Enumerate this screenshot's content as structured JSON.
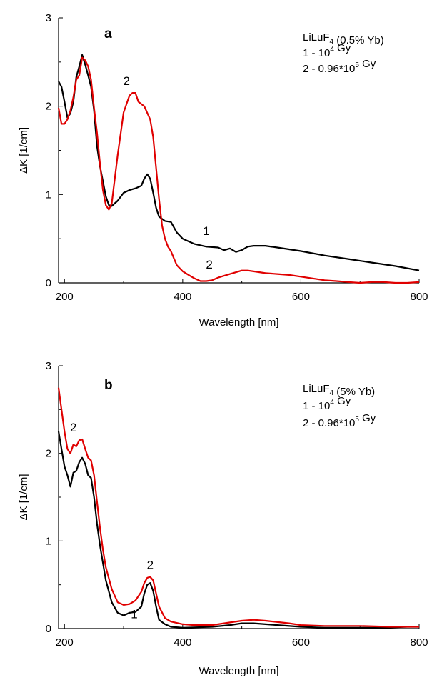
{
  "chart_data": [
    {
      "type": "line",
      "panel_label": "a",
      "xlabel": "Wavelength [nm]",
      "ylabel": "ΔK [1/cm]",
      "xlim": [
        190,
        800
      ],
      "ylim": [
        0,
        3
      ],
      "xticks": [
        200,
        400,
        600,
        800
      ],
      "yticks": [
        0,
        1,
        2,
        3
      ],
      "legend": {
        "placement": "top-right",
        "lines": [
          {
            "parts": [
              {
                "t": "LiLuF"
              },
              {
                "t": "4",
                "sub": true
              },
              {
                "t": " (0.5% Yb)"
              }
            ]
          },
          {
            "parts": [
              {
                "t": "1 - 10"
              },
              {
                "t": "4",
                "sup": true
              },
              {
                "t": " Gy"
              }
            ]
          },
          {
            "parts": [
              {
                "t": "2 - 0.96*10"
              },
              {
                "t": "5",
                "sup": true
              },
              {
                "t": " Gy"
              }
            ]
          }
        ]
      },
      "series": [
        {
          "label": "1",
          "color": "#000000",
          "points": [
            [
              190,
              2.28
            ],
            [
              195,
              2.22
            ],
            [
              200,
              2.05
            ],
            [
              205,
              1.87
            ],
            [
              210,
              1.92
            ],
            [
              215,
              2.05
            ],
            [
              220,
              2.33
            ],
            [
              225,
              2.45
            ],
            [
              230,
              2.58
            ],
            [
              235,
              2.47
            ],
            [
              240,
              2.35
            ],
            [
              245,
              2.22
            ],
            [
              250,
              1.95
            ],
            [
              255,
              1.55
            ],
            [
              260,
              1.32
            ],
            [
              265,
              1.15
            ],
            [
              270,
              0.98
            ],
            [
              275,
              0.88
            ],
            [
              280,
              0.87
            ],
            [
              290,
              0.93
            ],
            [
              300,
              1.02
            ],
            [
              310,
              1.05
            ],
            [
              320,
              1.07
            ],
            [
              330,
              1.1
            ],
            [
              335,
              1.18
            ],
            [
              340,
              1.23
            ],
            [
              345,
              1.18
            ],
            [
              350,
              1.02
            ],
            [
              355,
              0.85
            ],
            [
              360,
              0.75
            ],
            [
              370,
              0.7
            ],
            [
              380,
              0.69
            ],
            [
              390,
              0.57
            ],
            [
              400,
              0.5
            ],
            [
              420,
              0.44
            ],
            [
              440,
              0.41
            ],
            [
              460,
              0.4
            ],
            [
              470,
              0.37
            ],
            [
              480,
              0.39
            ],
            [
              490,
              0.35
            ],
            [
              500,
              0.37
            ],
            [
              510,
              0.41
            ],
            [
              520,
              0.42
            ],
            [
              540,
              0.42
            ],
            [
              560,
              0.4
            ],
            [
              600,
              0.36
            ],
            [
              640,
              0.31
            ],
            [
              680,
              0.27
            ],
            [
              720,
              0.23
            ],
            [
              760,
              0.19
            ],
            [
              800,
              0.14
            ]
          ]
        },
        {
          "label": "2",
          "color": "#e00000",
          "points": [
            [
              190,
              1.98
            ],
            [
              195,
              1.8
            ],
            [
              200,
              1.8
            ],
            [
              205,
              1.85
            ],
            [
              210,
              1.95
            ],
            [
              215,
              2.1
            ],
            [
              220,
              2.3
            ],
            [
              225,
              2.35
            ],
            [
              230,
              2.55
            ],
            [
              235,
              2.52
            ],
            [
              240,
              2.45
            ],
            [
              245,
              2.3
            ],
            [
              250,
              1.98
            ],
            [
              255,
              1.7
            ],
            [
              260,
              1.35
            ],
            [
              265,
              1.05
            ],
            [
              270,
              0.88
            ],
            [
              275,
              0.83
            ],
            [
              280,
              0.9
            ],
            [
              290,
              1.45
            ],
            [
              300,
              1.93
            ],
            [
              310,
              2.12
            ],
            [
              315,
              2.15
            ],
            [
              320,
              2.15
            ],
            [
              325,
              2.05
            ],
            [
              335,
              2.0
            ],
            [
              345,
              1.85
            ],
            [
              350,
              1.65
            ],
            [
              355,
              1.3
            ],
            [
              360,
              0.95
            ],
            [
              365,
              0.65
            ],
            [
              370,
              0.5
            ],
            [
              375,
              0.41
            ],
            [
              380,
              0.36
            ],
            [
              385,
              0.28
            ],
            [
              390,
              0.2
            ],
            [
              400,
              0.13
            ],
            [
              410,
              0.09
            ],
            [
              420,
              0.05
            ],
            [
              430,
              0.02
            ],
            [
              440,
              0.02
            ],
            [
              450,
              0.03
            ],
            [
              460,
              0.06
            ],
            [
              480,
              0.1
            ],
            [
              500,
              0.14
            ],
            [
              510,
              0.14
            ],
            [
              520,
              0.13
            ],
            [
              540,
              0.11
            ],
            [
              560,
              0.1
            ],
            [
              580,
              0.09
            ],
            [
              600,
              0.07
            ],
            [
              620,
              0.05
            ],
            [
              640,
              0.03
            ],
            [
              660,
              0.02
            ],
            [
              680,
              0.01
            ],
            [
              700,
              0.0
            ],
            [
              720,
              0.01
            ],
            [
              740,
              0.01
            ],
            [
              760,
              0.0
            ],
            [
              780,
              0.0
            ],
            [
              800,
              0.01
            ]
          ]
        }
      ],
      "curve_labels": [
        {
          "text": "1",
          "x": 440,
          "y": 0.54
        },
        {
          "text": "2",
          "x": 445,
          "y": 0.16
        },
        {
          "text": "2",
          "x": 305,
          "y": 2.24
        }
      ]
    },
    {
      "type": "line",
      "panel_label": "b",
      "xlabel": "Wavelength [nm]",
      "ylabel": "ΔK [1/cm]",
      "xlim": [
        190,
        800
      ],
      "ylim": [
        0,
        3
      ],
      "xticks": [
        200,
        400,
        600,
        800
      ],
      "yticks": [
        0,
        1,
        2,
        3
      ],
      "legend": {
        "placement": "top-right",
        "lines": [
          {
            "parts": [
              {
                "t": "LiLuF"
              },
              {
                "t": "4",
                "sub": true
              },
              {
                "t": " (5% Yb)"
              }
            ]
          },
          {
            "parts": [
              {
                "t": "1 - 10"
              },
              {
                "t": "4",
                "sup": true
              },
              {
                "t": " Gy"
              }
            ]
          },
          {
            "parts": [
              {
                "t": "2 - 0.96*10"
              },
              {
                "t": "5",
                "sup": true
              },
              {
                "t": " Gy"
              }
            ]
          }
        ]
      },
      "series": [
        {
          "label": "1",
          "color": "#000000",
          "points": [
            [
              190,
              2.25
            ],
            [
              195,
              2.05
            ],
            [
              200,
              1.85
            ],
            [
              205,
              1.75
            ],
            [
              210,
              1.62
            ],
            [
              215,
              1.78
            ],
            [
              220,
              1.8
            ],
            [
              225,
              1.9
            ],
            [
              230,
              1.95
            ],
            [
              235,
              1.88
            ],
            [
              240,
              1.75
            ],
            [
              245,
              1.72
            ],
            [
              250,
              1.5
            ],
            [
              255,
              1.2
            ],
            [
              260,
              0.95
            ],
            [
              265,
              0.75
            ],
            [
              270,
              0.55
            ],
            [
              280,
              0.3
            ],
            [
              290,
              0.18
            ],
            [
              300,
              0.15
            ],
            [
              310,
              0.18
            ],
            [
              320,
              0.19
            ],
            [
              330,
              0.25
            ],
            [
              335,
              0.4
            ],
            [
              340,
              0.5
            ],
            [
              345,
              0.52
            ],
            [
              350,
              0.43
            ],
            [
              355,
              0.25
            ],
            [
              360,
              0.1
            ],
            [
              370,
              0.05
            ],
            [
              380,
              0.02
            ],
            [
              400,
              0.01
            ],
            [
              450,
              0.02
            ],
            [
              480,
              0.04
            ],
            [
              500,
              0.06
            ],
            [
              520,
              0.06
            ],
            [
              560,
              0.04
            ],
            [
              600,
              0.02
            ],
            [
              640,
              0.01
            ],
            [
              700,
              0.01
            ],
            [
              740,
              0.01
            ],
            [
              780,
              0.02
            ],
            [
              800,
              0.02
            ]
          ]
        },
        {
          "label": "2",
          "color": "#e00000",
          "points": [
            [
              190,
              2.75
            ],
            [
              195,
              2.5
            ],
            [
              200,
              2.25
            ],
            [
              205,
              2.05
            ],
            [
              210,
              2.0
            ],
            [
              215,
              2.1
            ],
            [
              220,
              2.08
            ],
            [
              225,
              2.15
            ],
            [
              230,
              2.16
            ],
            [
              235,
              2.05
            ],
            [
              240,
              1.95
            ],
            [
              245,
              1.92
            ],
            [
              250,
              1.75
            ],
            [
              255,
              1.45
            ],
            [
              260,
              1.15
            ],
            [
              265,
              0.9
            ],
            [
              270,
              0.7
            ],
            [
              280,
              0.45
            ],
            [
              290,
              0.3
            ],
            [
              300,
              0.27
            ],
            [
              310,
              0.28
            ],
            [
              320,
              0.32
            ],
            [
              330,
              0.42
            ],
            [
              335,
              0.52
            ],
            [
              340,
              0.58
            ],
            [
              345,
              0.59
            ],
            [
              350,
              0.55
            ],
            [
              355,
              0.4
            ],
            [
              360,
              0.25
            ],
            [
              370,
              0.12
            ],
            [
              380,
              0.08
            ],
            [
              400,
              0.05
            ],
            [
              420,
              0.04
            ],
            [
              450,
              0.04
            ],
            [
              480,
              0.07
            ],
            [
              500,
              0.09
            ],
            [
              520,
              0.1
            ],
            [
              540,
              0.09
            ],
            [
              580,
              0.06
            ],
            [
              600,
              0.04
            ],
            [
              640,
              0.03
            ],
            [
              700,
              0.03
            ],
            [
              750,
              0.02
            ],
            [
              800,
              0.02
            ]
          ]
        }
      ],
      "curve_labels": [
        {
          "text": "2",
          "x": 215,
          "y": 2.25
        },
        {
          "text": "2",
          "x": 345,
          "y": 0.68
        },
        {
          "text": "1",
          "x": 318,
          "y": 0.12
        }
      ]
    }
  ]
}
